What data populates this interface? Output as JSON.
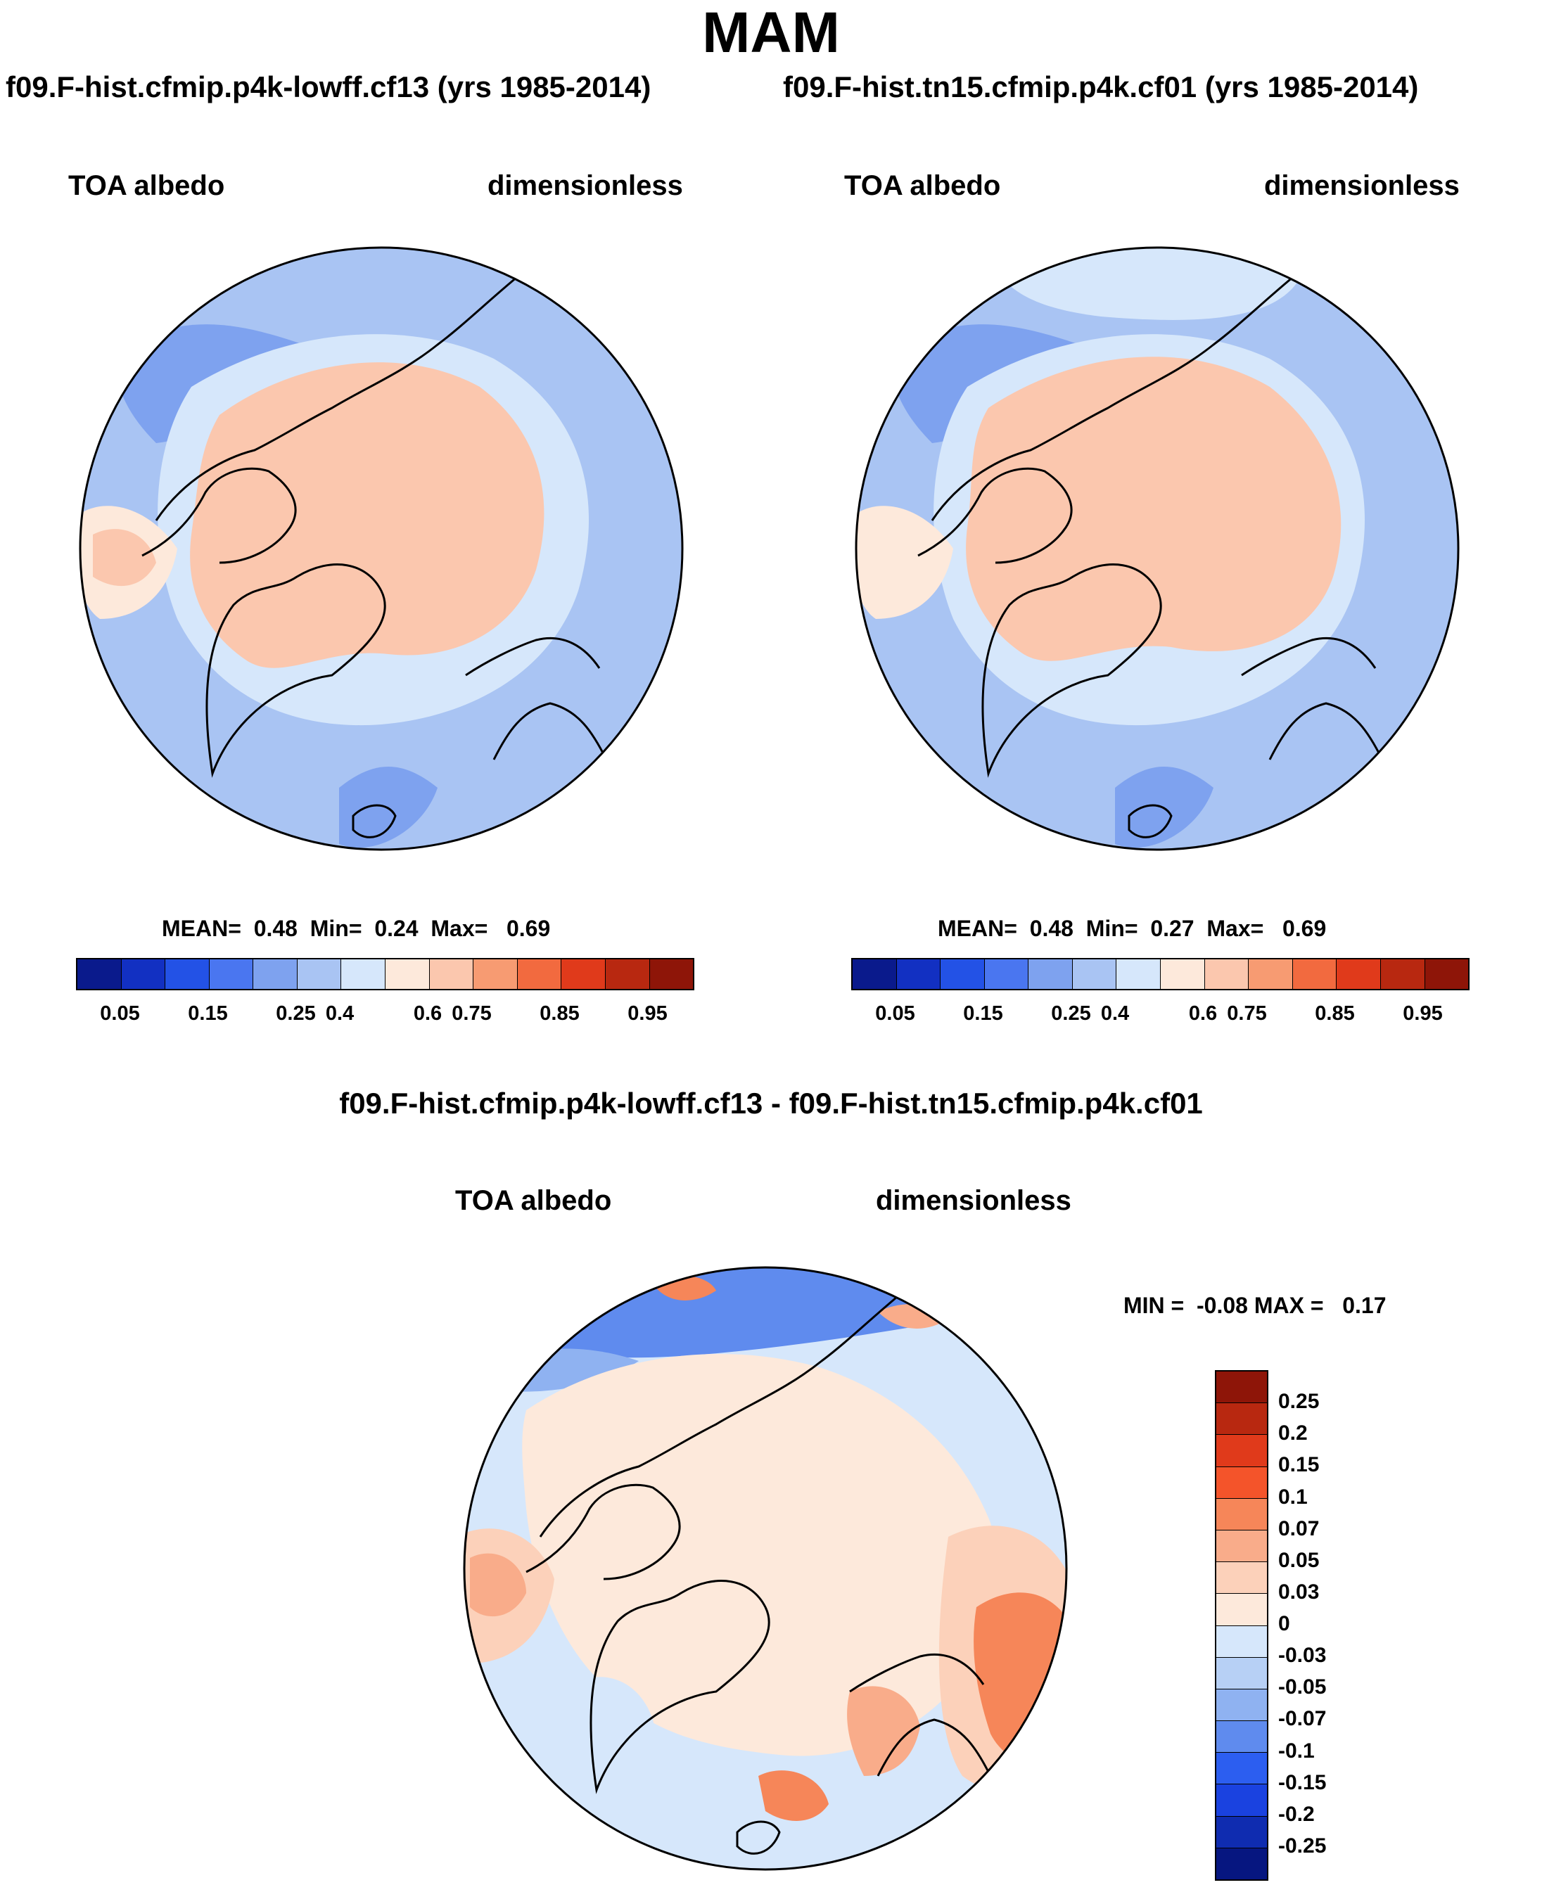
{
  "figure": {
    "season": "MAM",
    "case1_title": "f09.F-hist.cfmip.p4k-lowff.cf13 (yrs 1985-2014)",
    "case2_title": "f09.F-hist.tn15.cfmip.p4k.cf01 (yrs 1985-2014)",
    "diff_title": "f09.F-hist.cfmip.p4k-lowff.cf13 - f09.F-hist.tn15.cfmip.p4k.cf01"
  },
  "panel1": {
    "variable": "TOA albedo",
    "units": "dimensionless",
    "stats": {
      "mean_label": "MEAN=",
      "mean": "0.48",
      "min_label": "Min=",
      "min": "0.24",
      "max_label": "Max=",
      "max": "0.69"
    }
  },
  "panel2": {
    "variable": "TOA albedo",
    "units": "dimensionless",
    "stats": {
      "mean_label": "MEAN=",
      "mean": "0.48",
      "min_label": "Min=",
      "min": "0.27",
      "max_label": "Max=",
      "max": "0.69"
    }
  },
  "panel3": {
    "variable": "TOA albedo",
    "units": "dimensionless",
    "stats": {
      "min_label": "MIN =",
      "min": "-0.08",
      "max_label": "MAX =",
      "max": "0.17"
    }
  },
  "colorbar_main": {
    "colors": [
      "#0a1a8c",
      "#1230c2",
      "#2352e6",
      "#4a76f0",
      "#7ea2ef",
      "#a9c4f3",
      "#d6e7fb",
      "#fde9db",
      "#fbc7ae",
      "#f79b72",
      "#f26a3f",
      "#e03a1b",
      "#b82810",
      "#8e1508"
    ],
    "tick_labels": [
      "0.05",
      "0.15",
      "0.25",
      "0.4",
      "0.6",
      "0.75",
      "0.85",
      "0.95"
    ],
    "tick_edges": [
      1,
      3,
      5,
      6,
      8,
      9,
      11,
      13
    ]
  },
  "colorbar_diff": {
    "colors": [
      "#8e1508",
      "#b82810",
      "#e03a1b",
      "#f4542a",
      "#f68659",
      "#f9ac8a",
      "#fcd1ba",
      "#fde9db",
      "#d6e7fb",
      "#b7d0f5",
      "#8fb2f1",
      "#5f8bee",
      "#2c5ef0",
      "#1a42e0",
      "#0f2cb0",
      "#061680"
    ],
    "tick_labels": [
      "0.25",
      "0.2",
      "0.15",
      "0.1",
      "0.07",
      "0.05",
      "0.03",
      "0",
      "-0.03",
      "-0.05",
      "-0.07",
      "-0.1",
      "-0.15",
      "-0.2",
      "-0.25"
    ]
  },
  "maps": {
    "description_colors": {
      "ocean_low": "#a9c4f3",
      "ocean_mid": "#d6e7fb",
      "land_high": "#fbc7ae",
      "diff_bg": "#d6e7fb",
      "diff_pos": "#fde9db"
    }
  }
}
